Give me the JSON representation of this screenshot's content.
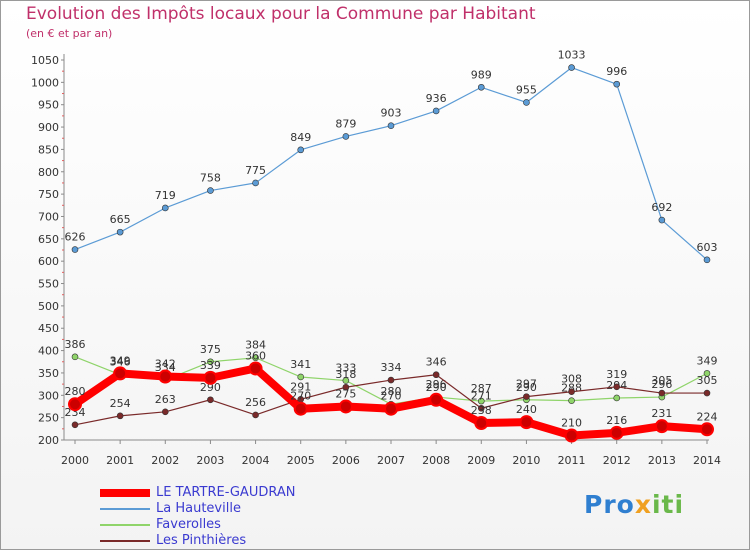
{
  "chart_data": {
    "type": "line",
    "title": "Evolution des Impôts locaux pour la Commune par Habitant",
    "subtitle": "(en € et par an)",
    "x": [
      "2000",
      "2001",
      "2002",
      "2003",
      "2004",
      "2005",
      "2006",
      "2007",
      "2008",
      "2009",
      "2010",
      "2011",
      "2012",
      "2013",
      "2014"
    ],
    "ylim": [
      200,
      1050
    ],
    "yticks": [
      200,
      250,
      300,
      350,
      400,
      450,
      500,
      550,
      600,
      650,
      700,
      750,
      800,
      850,
      900,
      950,
      1000,
      1050
    ],
    "grid": false,
    "legend_position": "bottom-left",
    "series": [
      {
        "name": "LE TARTRE-GAUDRAN",
        "color": "#ff0000",
        "values": [
          280,
          349,
          342,
          339,
          360,
          270,
          275,
          270,
          290,
          238,
          240,
          210,
          216,
          231,
          224
        ]
      },
      {
        "name": "La Hauteville",
        "color": "#5b9bd5",
        "values": [
          626,
          665,
          719,
          758,
          775,
          849,
          879,
          903,
          936,
          989,
          955,
          1033,
          996,
          692,
          603
        ]
      },
      {
        "name": "Faverolles",
        "color": "#8fd46a",
        "values": [
          386,
          346,
          334,
          375,
          384,
          341,
          333,
          280,
          296,
          287,
          290,
          288,
          294,
          296,
          349
        ]
      },
      {
        "name": "Les Pinthières",
        "color": "#7a2a2a",
        "values": [
          234,
          254,
          263,
          290,
          256,
          291,
          318,
          334,
          346,
          271,
          297,
          308,
          319,
          305,
          305
        ]
      }
    ]
  },
  "logo": {
    "part1": "Pro",
    "part2": "x",
    "part3": "iti"
  }
}
